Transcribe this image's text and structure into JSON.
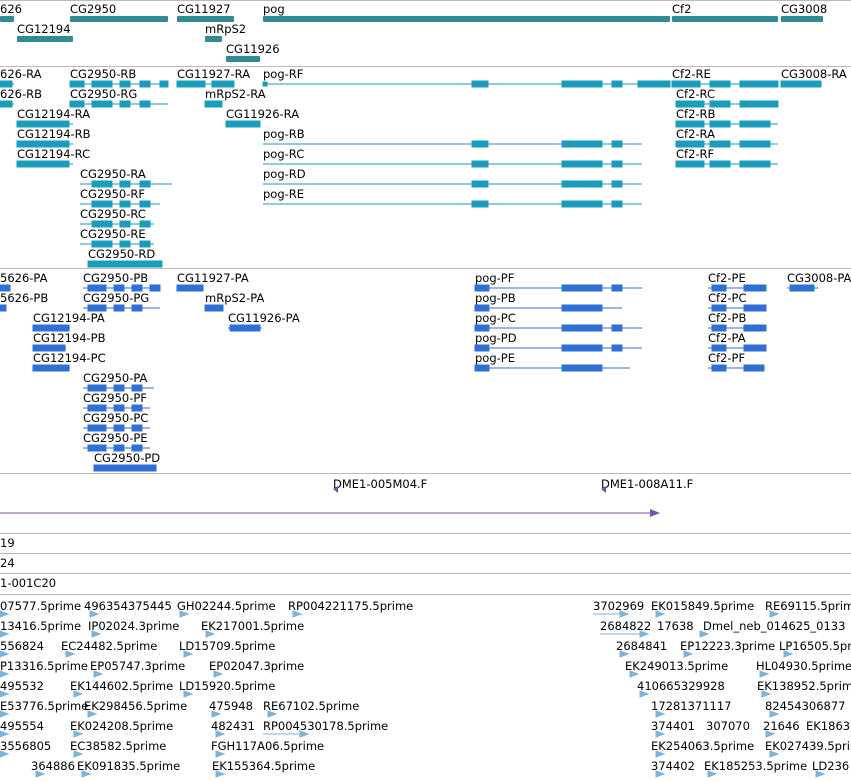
{
  "gene_track": {
    "labels": [
      "626",
      "CG2950",
      "CG11927",
      "pog",
      "Cf2",
      "CG3008",
      "CG12194",
      "mRpS2",
      "CG11926"
    ]
  },
  "transcript_track_1": {
    "labels": [
      "626-RA",
      "CG2950-RB",
      "CG11927-RA",
      "pog-RF",
      "Cf2-RE",
      "CG3008-RA",
      "626-RB",
      "CG2950-RG",
      "mRpS2-RA",
      "Cf2-RC",
      "CG12194-RA",
      "CG11926-RA",
      "Cf2-RB",
      "CG12194-RB",
      "pog-RB",
      "Cf2-RA",
      "CG12194-RC",
      "pog-RC",
      "Cf2-RF",
      "CG2950-RA",
      "pog-RD",
      "CG2950-RF",
      "pog-RE",
      "CG2950-RC",
      "CG2950-RE",
      "CG2950-RD"
    ]
  },
  "transcript_track_2": {
    "labels": [
      "5626-PA",
      "CG2950-PB",
      "CG11927-PA",
      "pog-PF",
      "Cf2-PE",
      "CG3008-PA",
      "5626-PB",
      "CG2950-PG",
      "mRpS2-PA",
      "pog-PB",
      "Cf2-PC",
      "CG12194-PA",
      "CG11926-PA",
      "pog-PC",
      "Cf2-PB",
      "CG12194-PB",
      "pog-PD",
      "Cf2-PA",
      "CG12194-PC",
      "pog-PE",
      "Cf2-PF",
      "CG2950-PA",
      "CG2950-PF",
      "CG2950-PC",
      "CG2950-PE",
      "CG2950-PD"
    ]
  },
  "clone_track": {
    "labels": [
      "DME1-005M04.F",
      "DME1-008A11.F"
    ]
  },
  "single_tracks": {
    "labels": [
      "19",
      "24",
      "1-001C20"
    ]
  },
  "est_track": {
    "labels": [
      "07577.5prime",
      "496354375445",
      "GH02244.5prime",
      "RP004221175.5prime",
      "3702969",
      "EK015849.5prime",
      "RE69115.5prime",
      "13416.5prime",
      "IP02024.3prime",
      "EK217001.5prime",
      "2684822",
      "17638",
      "Dmel_neb_014625_0133",
      "556824",
      "EC24482.5prime",
      "LD15709.5prime",
      "2684841",
      "EP12223.3prime",
      "LP16505.5prime",
      "P13316.5prime",
      "EP05747.3prime",
      "EP02047.3prime",
      "EK249013.5prime",
      "HL04930.5prime",
      "495532",
      "EK144602.5prime",
      "LD15920.5prime",
      "410665329928",
      "EK138952.5prime",
      "E53776.5prime",
      "EK298456.5prime",
      "475948",
      "RE67102.5prime",
      "17281371117",
      "82454306877",
      "495554",
      "EK024208.5prime",
      "482431",
      "RP004530178.5prime",
      "374401",
      "307070",
      "21646",
      "EK1863",
      "3556805",
      "EC38582.5prime",
      "FGH117A06.5prime",
      "EK254063.5prime",
      "EK027439.5prime",
      "364886",
      "EK091835.5prime",
      "EK155364.5prime",
      "374402",
      "EK185253.5prime",
      "LD236"
    ]
  },
  "colors": {
    "gene": "#2f8c92",
    "transcript1": "#1a9dbb",
    "transcript2": "#2f6fd6",
    "clone": "#7a4fa8",
    "est": "#7fb2d9",
    "divider": "#b9b9c0"
  }
}
